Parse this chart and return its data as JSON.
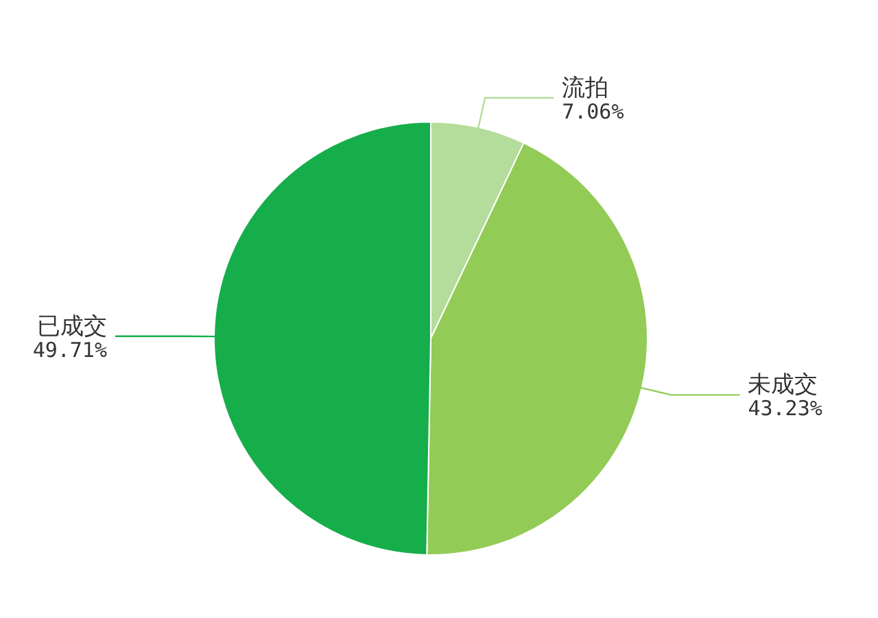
{
  "chart_data": {
    "type": "pie",
    "categories": [
      "流拍",
      "未成交",
      "已成交"
    ],
    "values": [
      7.06,
      43.23,
      49.71
    ],
    "colors": [
      "#b4dc9a",
      "#92cb55",
      "#16ad4b"
    ],
    "value_labels": [
      "7.06%",
      "43.23%",
      "49.71%"
    ]
  }
}
